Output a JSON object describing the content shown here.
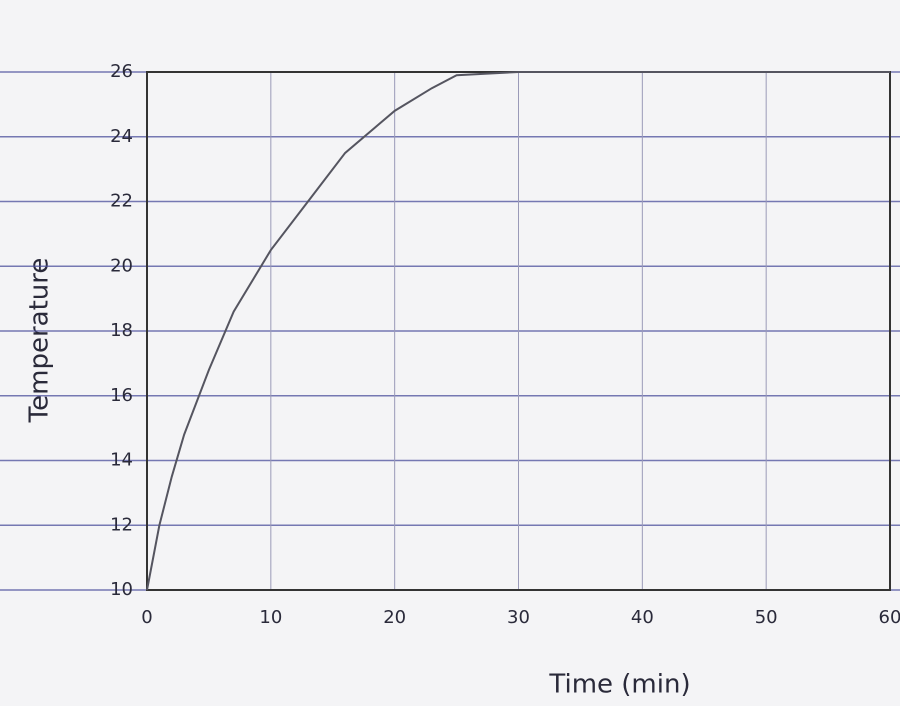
{
  "chart_data": {
    "type": "line",
    "x_label": "Time (min)",
    "y_label": "Temperature",
    "x": [
      0,
      1,
      2,
      3,
      5,
      7,
      10,
      13,
      16,
      20,
      23,
      25,
      30,
      40,
      50,
      60
    ],
    "values": [
      10,
      12,
      13.5,
      14.8,
      16.8,
      18.6,
      20.5,
      22,
      23.5,
      24.8,
      25.5,
      25.9,
      26,
      26,
      26,
      26
    ],
    "color": "#555560",
    "xlim": [
      0,
      60
    ],
    "xticks": [
      0,
      10,
      20,
      30,
      40,
      50,
      60
    ],
    "ylim": [
      10,
      26
    ],
    "yticks": [
      10,
      12,
      14,
      16,
      18,
      20,
      22,
      24,
      26
    ],
    "grid": true
  }
}
